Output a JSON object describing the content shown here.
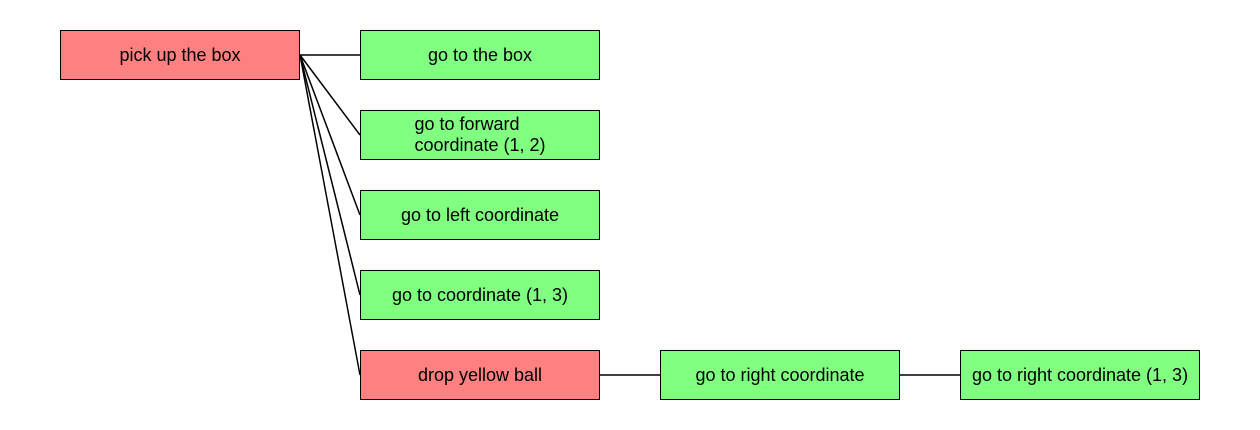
{
  "colors": {
    "action": "#ff8080",
    "step": "#80ff80",
    "border": "#000000",
    "edge": "#000000"
  },
  "nodes": {
    "pick_up_the_box": {
      "label": "pick up the box"
    },
    "go_to_the_box": {
      "label": "go to the box"
    },
    "go_to_forward": {
      "label": "go to forward\ncoordinate (1, 2)"
    },
    "go_to_left": {
      "label": "go to left coordinate"
    },
    "go_to_coordinate_13": {
      "label": "go to coordinate (1, 3)"
    },
    "drop_yellow_ball": {
      "label": "drop yellow ball"
    },
    "go_to_right": {
      "label": "go to right coordinate"
    },
    "go_to_right_13": {
      "label": "go to right coordinate (1, 3)"
    }
  },
  "edges": [
    {
      "from": "pick_up_the_box",
      "to": "go_to_the_box"
    },
    {
      "from": "pick_up_the_box",
      "to": "go_to_forward"
    },
    {
      "from": "pick_up_the_box",
      "to": "go_to_left"
    },
    {
      "from": "pick_up_the_box",
      "to": "go_to_coordinate_13"
    },
    {
      "from": "pick_up_the_box",
      "to": "drop_yellow_ball"
    },
    {
      "from": "drop_yellow_ball",
      "to": "go_to_right"
    },
    {
      "from": "go_to_right",
      "to": "go_to_right_13"
    }
  ]
}
